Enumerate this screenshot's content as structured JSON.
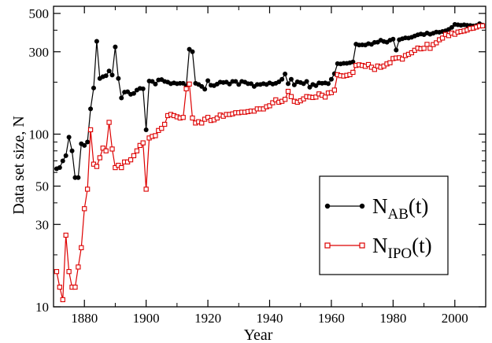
{
  "chart_data": {
    "type": "line",
    "xlabel": "Year",
    "ylabel": "Data set size, N",
    "xlim": [
      1870,
      2010
    ],
    "ylim": [
      10,
      550
    ],
    "yscale": "log",
    "xticks": [
      1880,
      1900,
      1920,
      1940,
      1960,
      1980,
      2000
    ],
    "yticks": [
      10,
      30,
      50,
      100,
      300,
      500
    ],
    "legend_position": "lower-right",
    "series": [
      {
        "name": "N_AB(t)",
        "name_main": "N",
        "name_sub": "AB",
        "name_suffix": "(t)",
        "color": "#000000",
        "marker": "filled-circle",
        "x": [
          1871,
          1872,
          1873,
          1874,
          1875,
          1876,
          1877,
          1878,
          1879,
          1880,
          1881,
          1882,
          1883,
          1884,
          1885,
          1886,
          1887,
          1888,
          1889,
          1890,
          1891,
          1892,
          1893,
          1894,
          1895,
          1896,
          1897,
          1898,
          1899,
          1900,
          1901,
          1902,
          1903,
          1904,
          1905,
          1906,
          1907,
          1908,
          1909,
          1910,
          1911,
          1912,
          1913,
          1914,
          1915,
          1916,
          1917,
          1918,
          1919,
          1920,
          1921,
          1922,
          1923,
          1924,
          1925,
          1926,
          1927,
          1928,
          1929,
          1930,
          1931,
          1932,
          1933,
          1934,
          1935,
          1936,
          1937,
          1938,
          1939,
          1940,
          1941,
          1942,
          1943,
          1944,
          1945,
          1946,
          1947,
          1948,
          1949,
          1950,
          1951,
          1952,
          1953,
          1954,
          1955,
          1956,
          1957,
          1958,
          1959,
          1960,
          1961,
          1962,
          1963,
          1964,
          1965,
          1966,
          1967,
          1968,
          1969,
          1970,
          1971,
          1972,
          1973,
          1974,
          1975,
          1976,
          1977,
          1978,
          1979,
          1980,
          1981,
          1982,
          1983,
          1984,
          1985,
          1986,
          1987,
          1988,
          1989,
          1990,
          1991,
          1992,
          1993,
          1994,
          1995,
          1996,
          1997,
          1998,
          1999,
          2000,
          2001,
          2002,
          2003,
          2004,
          2005,
          2006,
          2007,
          2008,
          2009
        ],
        "y": [
          63,
          64,
          70,
          75,
          96,
          80,
          56,
          56,
          88,
          86,
          90,
          140,
          185,
          345,
          210,
          215,
          218,
          232,
          220,
          320,
          210,
          162,
          175,
          176,
          170,
          172,
          180,
          184,
          183,
          106,
          203,
          202,
          195,
          206,
          207,
          202,
          200,
          196,
          198,
          196,
          197,
          197,
          190,
          310,
          300,
          197,
          194,
          189,
          182,
          204,
          192,
          191,
          195,
          200,
          199,
          200,
          195,
          202,
          202,
          194,
          202,
          200,
          196,
          196,
          189,
          194,
          194,
          196,
          194,
          198,
          195,
          197,
          201,
          208,
          223,
          196,
          208,
          193,
          201,
          199,
          196,
          202,
          187,
          194,
          191,
          198,
          197,
          198,
          196,
          208,
          224,
          256,
          255,
          257,
          257,
          259,
          262,
          332,
          328,
          329,
          328,
          334,
          331,
          340,
          341,
          350,
          344,
          341,
          350,
          355,
          307,
          352,
          357,
          361,
          360,
          364,
          370,
          376,
          380,
          377,
          385,
          379,
          384,
          390,
          389,
          393,
          397,
          404,
          415,
          432,
          430,
          427,
          430,
          427,
          426,
          423,
          426,
          436,
          428
        ]
      },
      {
        "name": "N_IPO(t)",
        "name_main": "N",
        "name_sub": "IPO",
        "name_suffix": "(t)",
        "color": "#dd0000",
        "marker": "open-square",
        "x": [
          1871,
          1872,
          1873,
          1874,
          1875,
          1876,
          1877,
          1878,
          1879,
          1880,
          1881,
          1882,
          1883,
          1884,
          1885,
          1886,
          1887,
          1888,
          1889,
          1890,
          1891,
          1892,
          1893,
          1894,
          1895,
          1896,
          1897,
          1898,
          1899,
          1900,
          1901,
          1902,
          1903,
          1904,
          1905,
          1906,
          1907,
          1908,
          1909,
          1910,
          1911,
          1912,
          1913,
          1914,
          1915,
          1916,
          1917,
          1918,
          1919,
          1920,
          1921,
          1922,
          1923,
          1924,
          1925,
          1926,
          1927,
          1928,
          1929,
          1930,
          1931,
          1932,
          1933,
          1934,
          1935,
          1936,
          1937,
          1938,
          1939,
          1940,
          1941,
          1942,
          1943,
          1944,
          1945,
          1946,
          1947,
          1948,
          1949,
          1950,
          1951,
          1952,
          1953,
          1954,
          1955,
          1956,
          1957,
          1958,
          1959,
          1960,
          1961,
          1962,
          1963,
          1964,
          1965,
          1966,
          1967,
          1968,
          1969,
          1970,
          1971,
          1972,
          1973,
          1974,
          1975,
          1976,
          1977,
          1978,
          1979,
          1980,
          1981,
          1982,
          1983,
          1984,
          1985,
          1986,
          1987,
          1988,
          1989,
          1990,
          1991,
          1992,
          1993,
          1994,
          1995,
          1996,
          1997,
          1998,
          1999,
          2000,
          2001,
          2002,
          2003,
          2004,
          2005,
          2006,
          2007,
          2008,
          2009
        ],
        "y": [
          16,
          13,
          11,
          26,
          16,
          13,
          13,
          17,
          22,
          37,
          48,
          106,
          67,
          65,
          73,
          83,
          80,
          117,
          82,
          64,
          66,
          64,
          69,
          69,
          71,
          75,
          80,
          86,
          89,
          48,
          95,
          97,
          98,
          105,
          108,
          114,
          128,
          130,
          128,
          126,
          124,
          125,
          183,
          195,
          124,
          116,
          118,
          116,
          122,
          125,
          120,
          121,
          124,
          129,
          127,
          130,
          130,
          131,
          133,
          133,
          134,
          134,
          135,
          136,
          136,
          140,
          140,
          140,
          144,
          146,
          152,
          158,
          153,
          155,
          159,
          177,
          165,
          155,
          153,
          156,
          160,
          165,
          164,
          163,
          164,
          171,
          168,
          164,
          173,
          174,
          180,
          221,
          218,
          217,
          219,
          221,
          228,
          250,
          252,
          250,
          247,
          253,
          244,
          237,
          248,
          244,
          248,
          255,
          259,
          274,
          276,
          277,
          272,
          285,
          290,
          296,
          306,
          315,
          312,
          314,
          331,
          314,
          330,
          338,
          352,
          360,
          378,
          372,
          385,
          379,
          390,
          393,
          396,
          401,
          409,
          411,
          417,
          423,
          424
        ]
      }
    ]
  }
}
